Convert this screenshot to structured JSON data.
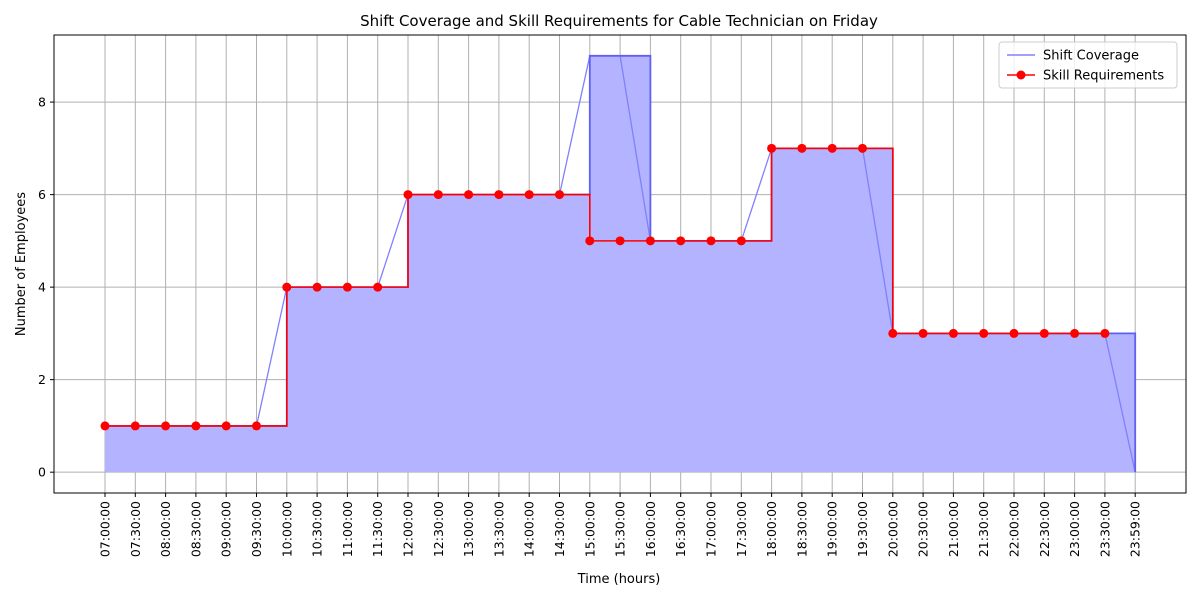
{
  "chart_data": {
    "type": "line",
    "title": "Shift Coverage and Skill Requirements for Cable Technician on Friday",
    "xlabel": "Time (hours)",
    "ylabel": "Number of Employees",
    "categories": [
      "07:00:00",
      "07:30:00",
      "08:00:00",
      "08:30:00",
      "09:00:00",
      "09:30:00",
      "10:00:00",
      "10:30:00",
      "11:00:00",
      "11:30:00",
      "12:00:00",
      "12:30:00",
      "13:00:00",
      "13:30:00",
      "14:00:00",
      "14:30:00",
      "15:00:00",
      "15:30:00",
      "16:00:00",
      "16:30:00",
      "17:00:00",
      "17:30:00",
      "18:00:00",
      "18:30:00",
      "19:00:00",
      "19:30:00",
      "20:00:00",
      "20:30:00",
      "21:00:00",
      "21:30:00",
      "22:00:00",
      "22:30:00",
      "23:00:00",
      "23:30:00",
      "23:59:00"
    ],
    "ylim": [
      -0.45,
      9.45
    ],
    "yticks": [
      0,
      2,
      4,
      6,
      8
    ],
    "grid": true,
    "legend_position": "top-right",
    "series": [
      {
        "name": "Shift Coverage",
        "style": "step-post-filled",
        "color": "#8080ff",
        "fill": "#b3b3ff",
        "values": [
          1,
          1,
          1,
          1,
          1,
          1,
          4,
          4,
          4,
          4,
          6,
          6,
          6,
          6,
          6,
          6,
          9,
          9,
          5,
          5,
          5,
          5,
          7,
          7,
          7,
          7,
          3,
          3,
          3,
          3,
          3,
          3,
          3,
          3,
          0
        ]
      },
      {
        "name": "Skill Requirements",
        "style": "step-post-markers",
        "color": "#ff0000",
        "values": [
          1,
          1,
          1,
          1,
          1,
          1,
          4,
          4,
          4,
          4,
          6,
          6,
          6,
          6,
          6,
          6,
          5,
          5,
          5,
          5,
          5,
          5,
          7,
          7,
          7,
          7,
          3,
          3,
          3,
          3,
          3,
          3,
          3,
          3,
          null
        ]
      }
    ]
  }
}
